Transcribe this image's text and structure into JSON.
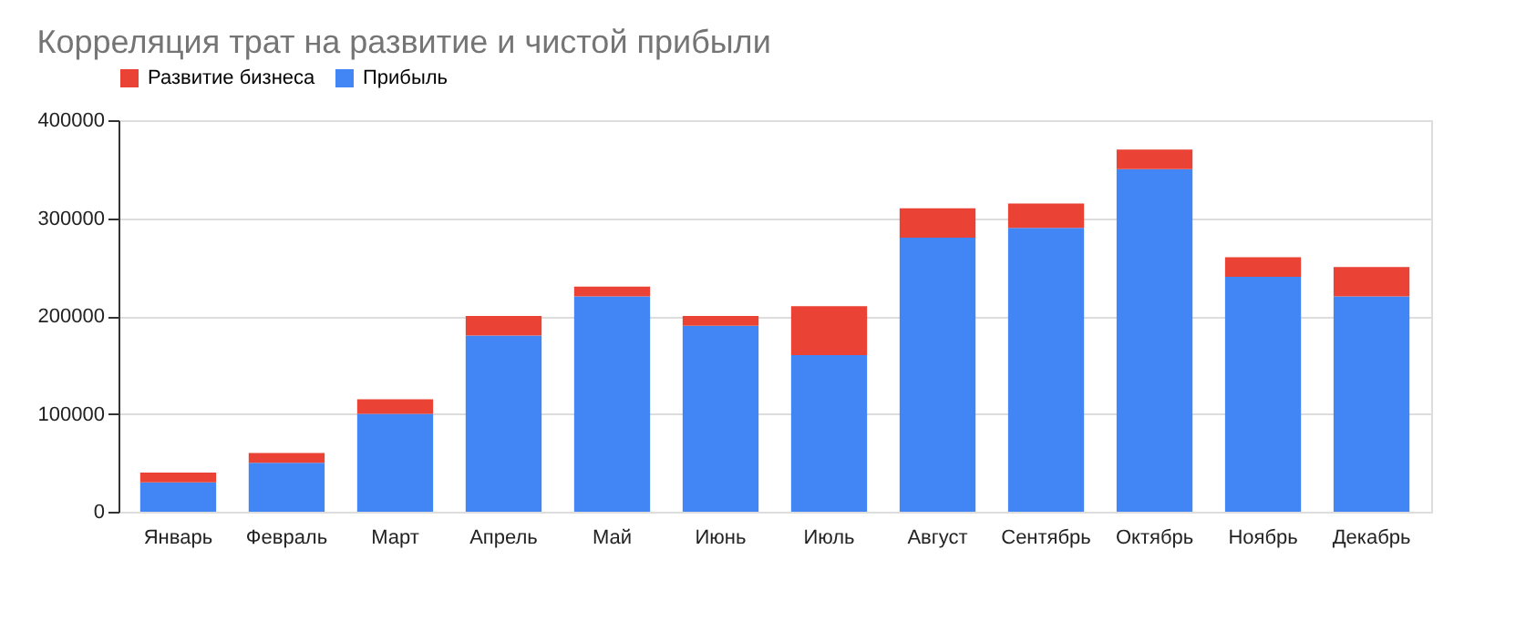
{
  "chart_data": {
    "type": "bar",
    "title": "Корреляция трат на развитие и чистой прибыли",
    "categories": [
      "Январь",
      "Февраль",
      "Март",
      "Апрель",
      "Май",
      "Июнь",
      "Июль",
      "Август",
      "Сентябрь",
      "Октябрь",
      "Ноябрь",
      "Декабрь"
    ],
    "stacked": true,
    "series": [
      {
        "name": "Прибыль",
        "color": "#4285f4",
        "values": [
          30000,
          50000,
          100000,
          180000,
          220000,
          190000,
          160000,
          280000,
          290000,
          350000,
          240000,
          220000
        ]
      },
      {
        "name": "Развитие бизнеса",
        "color": "#ea4335",
        "values": [
          10000,
          10000,
          15000,
          20000,
          10000,
          10000,
          50000,
          30000,
          25000,
          20000,
          20000,
          30000
        ]
      }
    ],
    "ylim": [
      0,
      400000
    ],
    "yticks": [
      0,
      100000,
      200000,
      300000,
      400000
    ],
    "grid": "y",
    "legend": "top"
  }
}
